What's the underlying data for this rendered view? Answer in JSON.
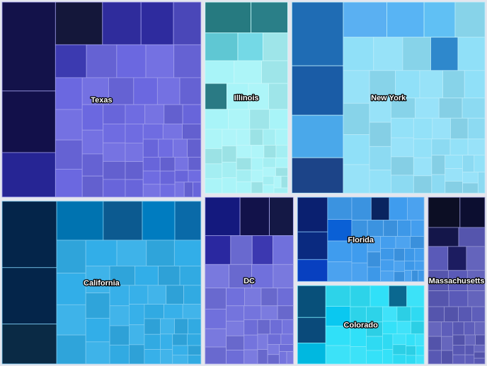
{
  "chart_data": {
    "type": "treemap",
    "title": "",
    "groups": [
      {
        "name": "Texas",
        "value": 105000,
        "color": "#6b68e0",
        "big": [
          {
            "value": 13000,
            "color": "#13124a"
          },
          {
            "value": 9000,
            "color": "#12104a"
          },
          {
            "value": 6500,
            "color": "#262594"
          },
          {
            "value": 5500,
            "color": "#14173a"
          },
          {
            "value": 4500,
            "color": "#2f2c9c"
          },
          {
            "value": 3800,
            "color": "#2e2b9e"
          },
          {
            "value": 3200,
            "color": "#4a47b8"
          },
          {
            "value": 2800,
            "color": "#3c3ab0"
          }
        ],
        "mid_count": 16,
        "small_count": 34
      },
      {
        "name": "California",
        "value": 88000,
        "color": "#32aee8",
        "big": [
          {
            "value": 10000,
            "color": "#04254a"
          },
          {
            "value": 8500,
            "color": "#04254a"
          },
          {
            "value": 6000,
            "color": "#0a2a45"
          },
          {
            "value": 5000,
            "color": "#0073b0"
          },
          {
            "value": 4200,
            "color": "#0c5a90"
          },
          {
            "value": 3500,
            "color": "#007cc0"
          },
          {
            "value": 2800,
            "color": "#0a6aa8"
          }
        ],
        "mid_count": 14,
        "small_count": 30
      },
      {
        "name": "Illinois",
        "value": 44000,
        "color": "#a8f4f8",
        "big": [
          {
            "value": 4000,
            "color": "#267a80"
          },
          {
            "value": 3200,
            "color": "#2a7f88"
          },
          {
            "value": 2600,
            "color": "#5fc7d3"
          },
          {
            "value": 2000,
            "color": "#74d9e6"
          },
          {
            "value": 1600,
            "color": "#2a7a84"
          }
        ],
        "mid_count": 12,
        "small_count": 30
      },
      {
        "name": "New York",
        "value": 100000,
        "color": "#90e0f8",
        "big": [
          {
            "value": 9000,
            "color": "#1f6cb4"
          },
          {
            "value": 7000,
            "color": "#1a5ca6"
          },
          {
            "value": 6000,
            "color": "#4aa8ea"
          },
          {
            "value": 5000,
            "color": "#1c4488"
          },
          {
            "value": 4200,
            "color": "#5ab0f2"
          },
          {
            "value": 3600,
            "color": "#58b4f4"
          },
          {
            "value": 3000,
            "color": "#60c0f4"
          },
          {
            "value": 2500,
            "color": "#2e88cc"
          }
        ],
        "mid_count": 16,
        "small_count": 30
      },
      {
        "name": "DC",
        "value": 41000,
        "color": "#7070dc",
        "big": [
          {
            "value": 3800,
            "color": "#14197e"
          },
          {
            "value": 3200,
            "color": "#12124a"
          },
          {
            "value": 2600,
            "color": "#141845"
          },
          {
            "value": 2100,
            "color": "#2a28a0"
          },
          {
            "value": 1700,
            "color": "#3c38b0"
          }
        ],
        "mid_count": 12,
        "small_count": 24
      },
      {
        "name": "Florida",
        "value": 30000,
        "color": "#3f9cee",
        "big": [
          {
            "value": 3000,
            "color": "#0a2070"
          },
          {
            "value": 2400,
            "color": "#0a2a80"
          },
          {
            "value": 1900,
            "color": "#0840c0"
          },
          {
            "value": 1500,
            "color": "#0a60d6"
          },
          {
            "value": 1200,
            "color": "#0a2460"
          }
        ],
        "mid_count": 10,
        "small_count": 22
      },
      {
        "name": "Colorado",
        "value": 28000,
        "color": "#30e0f8",
        "big": [
          {
            "value": 2600,
            "color": "#08507a"
          },
          {
            "value": 2100,
            "color": "#0a4a7a"
          },
          {
            "value": 1700,
            "color": "#00b8e0"
          },
          {
            "value": 1400,
            "color": "#0ac8f0"
          },
          {
            "value": 1100,
            "color": "#0a6890"
          }
        ],
        "mid_count": 10,
        "small_count": 20
      },
      {
        "name": "Massachusetts",
        "value": 27000,
        "color": "#5a5ab8",
        "big": [
          {
            "value": 2800,
            "color": "#0c0e24"
          },
          {
            "value": 2200,
            "color": "#0c0e30"
          },
          {
            "value": 1700,
            "color": "#14164a"
          },
          {
            "value": 1300,
            "color": "#1c1c60"
          }
        ],
        "mid_count": 10,
        "small_count": 22
      }
    ]
  }
}
